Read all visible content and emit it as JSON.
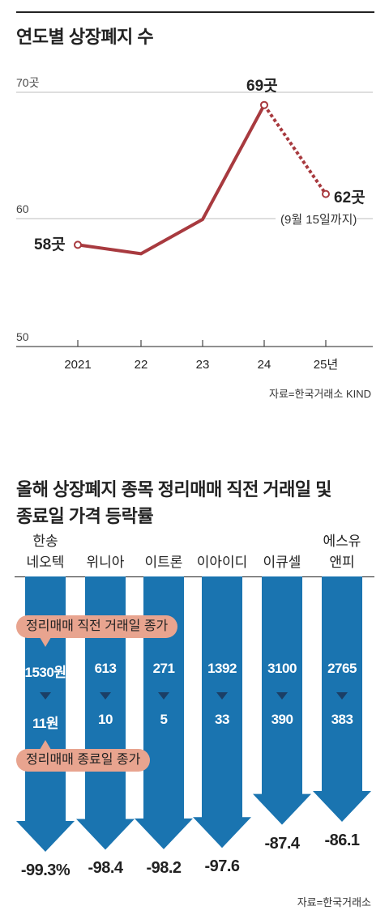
{
  "chart_data": [
    {
      "type": "line",
      "title": "연도별 상장폐지 수",
      "x": [
        "2021",
        "22",
        "23",
        "24",
        "25년"
      ],
      "values": [
        58,
        57.3,
        60,
        69,
        62
      ],
      "yticks": [
        "70곳",
        "60",
        "50"
      ],
      "ylim": [
        50,
        70
      ],
      "grid": true,
      "point_labels": {
        "0": "58곳",
        "3": "69곳",
        "4": "62곳"
      },
      "annotation": "(9월 15일까지)",
      "dashed_last_segment": true,
      "color": "#a83a3f",
      "source": "자료=한국거래소 KIND"
    },
    {
      "type": "bar",
      "title_lines": [
        "올해 상장폐지 종목 정리매매 직전 거래일 및",
        "종료일 가격 등락률"
      ],
      "categories": [
        [
          "한송",
          "네오텍"
        ],
        [
          "위니아",
          ""
        ],
        [
          "이트론",
          ""
        ],
        [
          "이아이디",
          ""
        ],
        [
          "이큐셀",
          ""
        ],
        [
          "에스유",
          "앤피"
        ]
      ],
      "before_prices": [
        "1530원",
        "613",
        "271",
        "1392",
        "3100",
        "2765"
      ],
      "after_prices": [
        "11원",
        "10",
        "5",
        "33",
        "390",
        "383"
      ],
      "change_labels": [
        "-99.3%",
        "-98.4",
        "-98.2",
        "-97.6",
        "-87.4",
        "-86.1"
      ],
      "values": [
        -99.3,
        -98.4,
        -98.2,
        -97.6,
        -87.4,
        -86.1
      ],
      "legend_before": "정리매매 직전 거래일 종가",
      "legend_after": "정리매매 종료일 종가",
      "color": "#1a74b0",
      "source": "자료=한국거래소"
    }
  ]
}
